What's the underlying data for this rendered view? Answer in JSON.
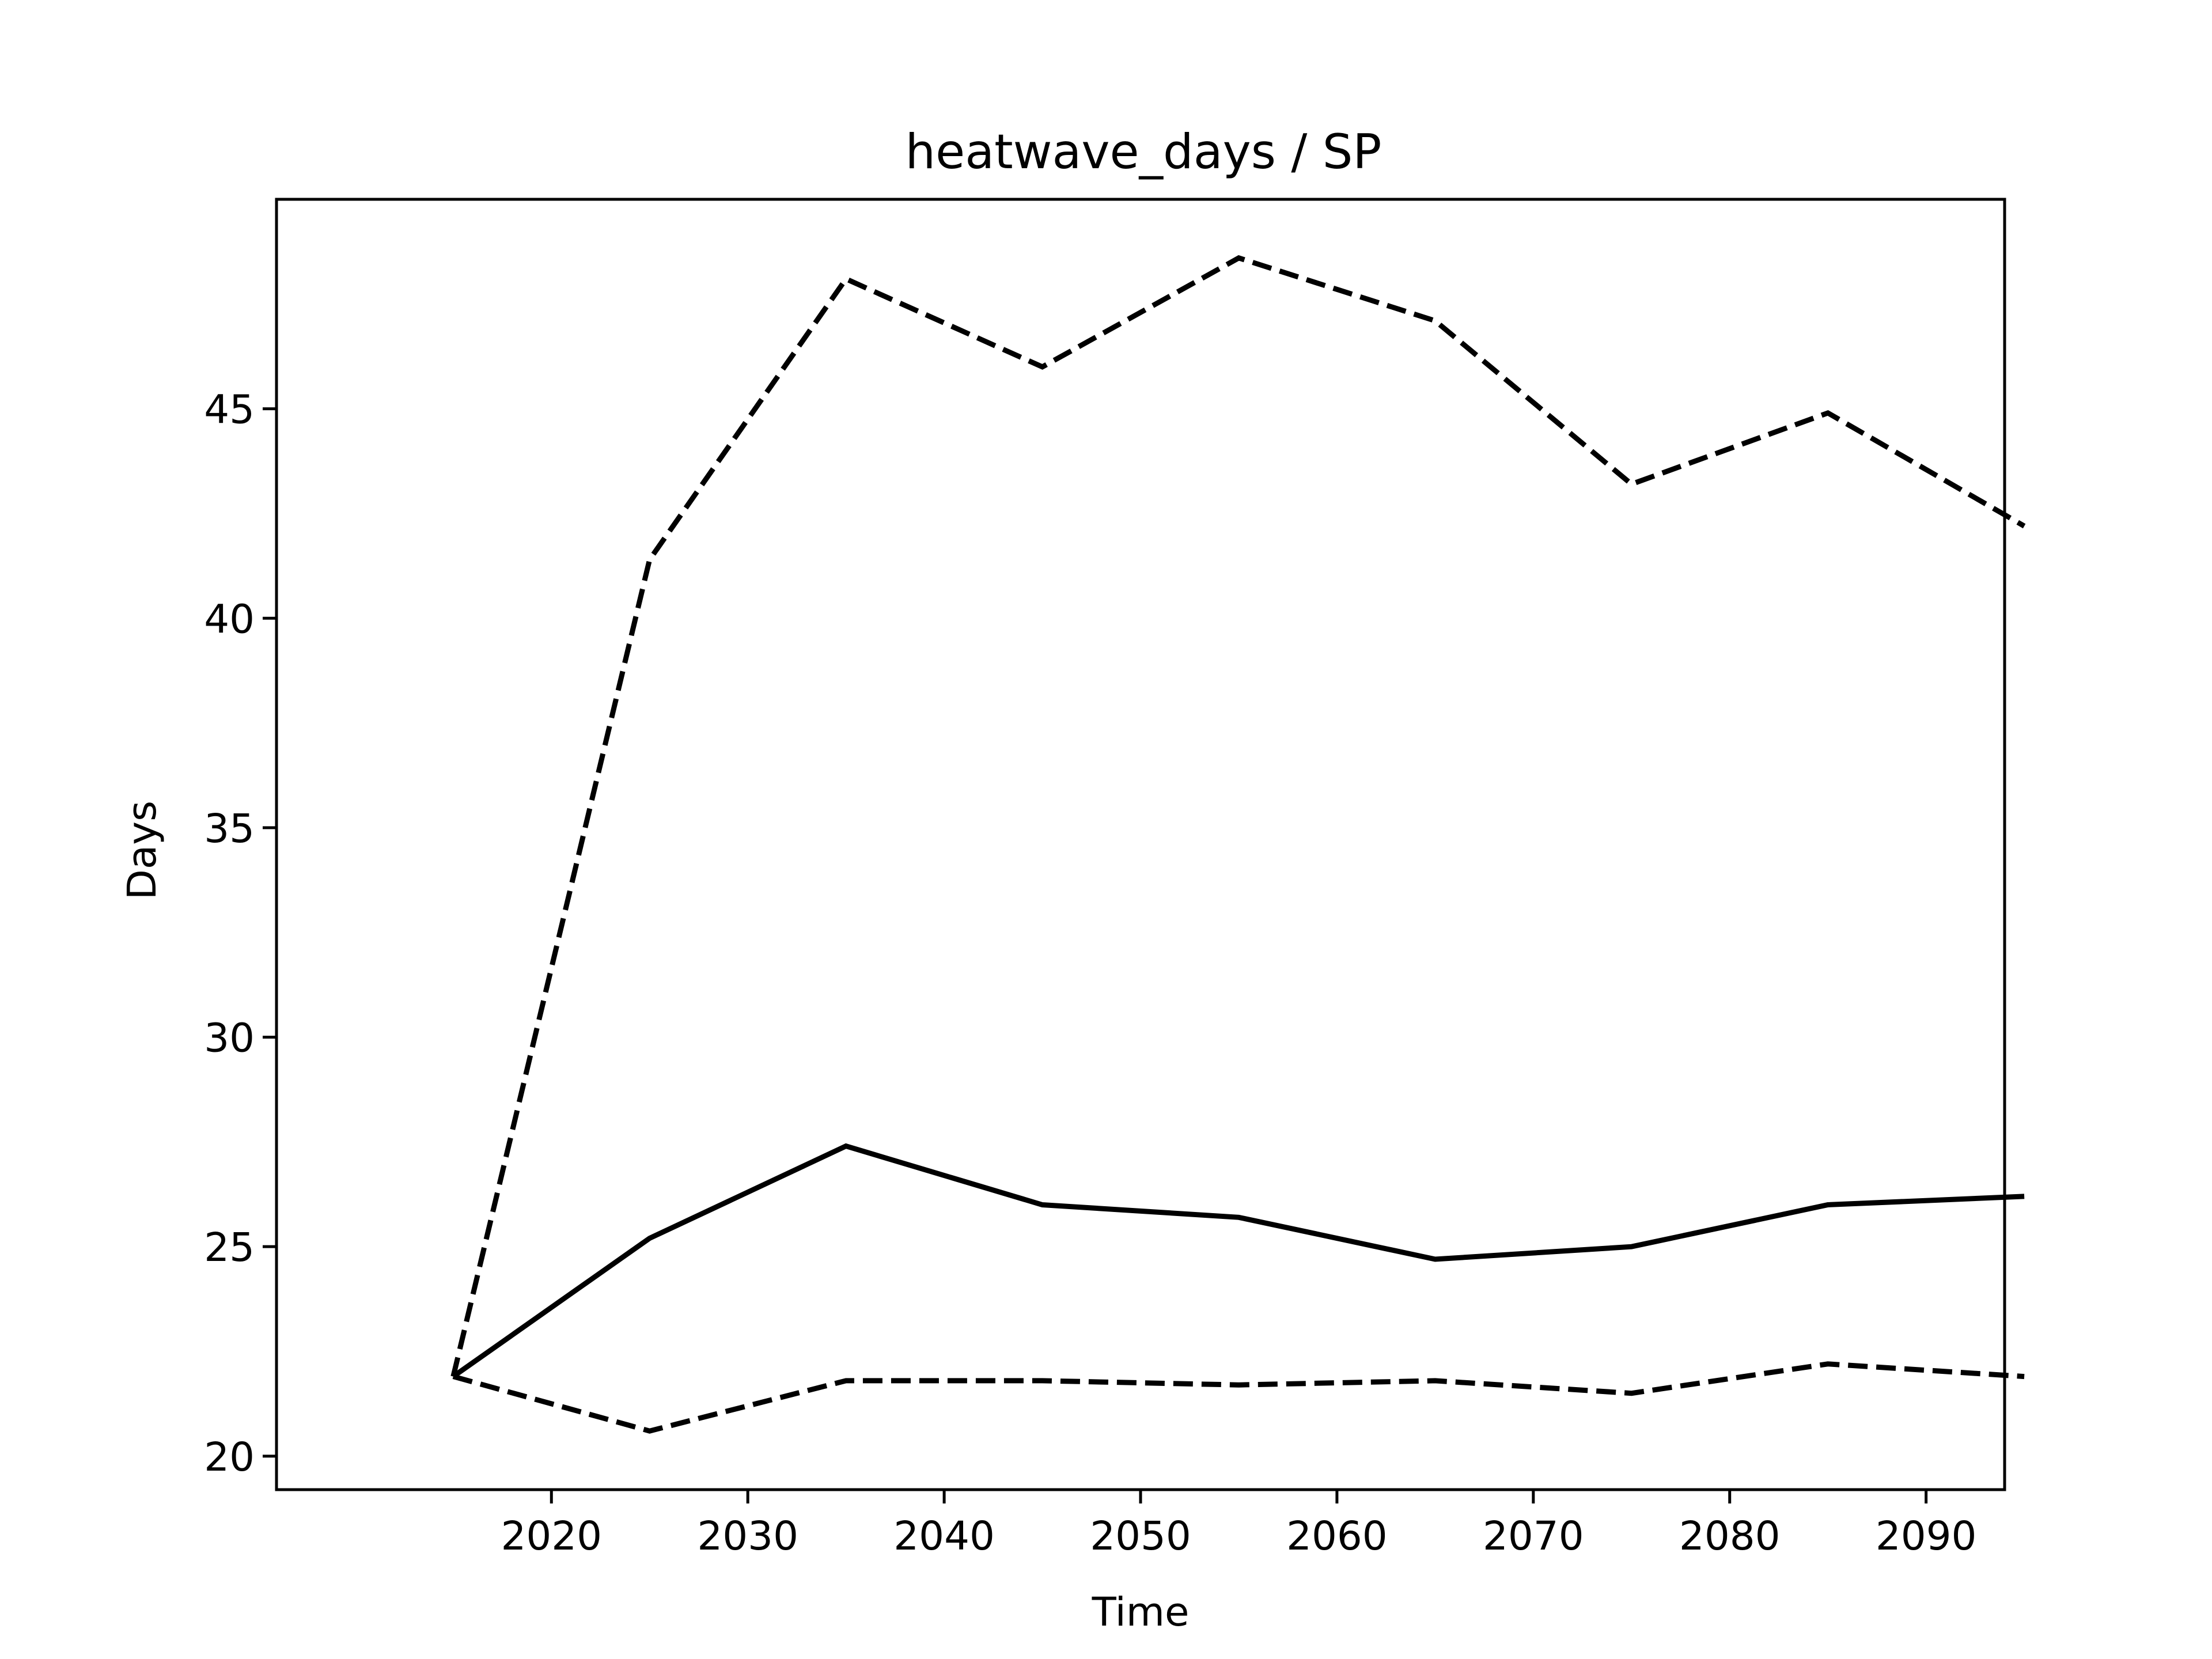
{
  "chart_data": {
    "type": "line",
    "title": "heatwave_days / SP",
    "xlabel": "Time",
    "ylabel": "Days",
    "x": [
      2015,
      2025,
      2035,
      2045,
      2055,
      2065,
      2075,
      2085,
      2095
    ],
    "xlim": [
      2006,
      2094
    ],
    "ylim": [
      19.2,
      50
    ],
    "x_ticks": [
      2020,
      2030,
      2040,
      2050,
      2060,
      2070,
      2080,
      2090
    ],
    "y_ticks": [
      20,
      25,
      30,
      35,
      40,
      45
    ],
    "grid": false,
    "legend": "none",
    "series": [
      {
        "style": "dashed",
        "color": "#000000",
        "values": [
          21.9,
          41.4,
          48.1,
          46.0,
          48.6,
          47.1,
          43.2,
          44.9,
          42.2
        ]
      },
      {
        "style": "solid",
        "color": "#000000",
        "values": [
          21.9,
          25.2,
          27.4,
          26.0,
          25.7,
          24.7,
          25.0,
          26.0,
          26.2
        ]
      },
      {
        "style": "dashed",
        "color": "#000000",
        "values": [
          21.9,
          20.6,
          21.8,
          21.8,
          21.7,
          21.8,
          21.5,
          22.2,
          21.9
        ]
      }
    ]
  }
}
